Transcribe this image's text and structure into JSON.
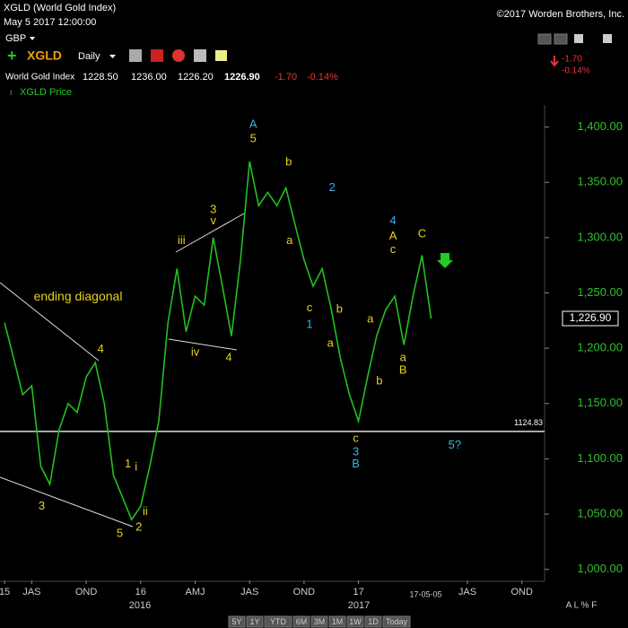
{
  "ui": {
    "title": "XGLD (World Gold Index)",
    "timestamp": "May 5 2017 12:00:00",
    "copyright": "©2017 Worden Brothers, Inc.",
    "currency": "GBP",
    "symbol": "XGLD",
    "interval": "Daily",
    "quote_name": "World Gold Index",
    "open": "1228.50",
    "high": "1236.00",
    "low": "1226.20",
    "last": "1226.90",
    "change": "-1.70",
    "change_pct": "-0.14%",
    "year_2016": "2016",
    "year_2017": "2017",
    "axis_options": "A L % F",
    "ranges": [
      "5Y",
      "1Y",
      "YTD",
      "6M",
      "3M",
      "1M",
      "1W",
      "1D",
      "Today"
    ]
  },
  "chart_data": {
    "type": "line",
    "categories": [
      "15",
      null,
      null,
      "JAS",
      null,
      null,
      null,
      null,
      null,
      "OND",
      null,
      null,
      null,
      null,
      null,
      "16",
      null,
      null,
      null,
      null,
      null,
      "AMJ",
      null,
      null,
      null,
      null,
      null,
      "JAS",
      null,
      null,
      null,
      null,
      null,
      "OND",
      null,
      null,
      null,
      null,
      null,
      "17",
      null,
      null,
      null,
      null,
      null,
      null,
      null,
      null,
      null,
      null,
      null,
      "JAS",
      null,
      null,
      null,
      null,
      null,
      "OND",
      null,
      null
    ],
    "series": [
      {
        "name": "XGLD Price",
        "color": "#22c01e",
        "values": [
          1223,
          1191,
          1158,
          1166,
          1093,
          1077,
          1126,
          1150,
          1142,
          1174,
          1187,
          1150,
          1085,
          1065,
          1045,
          1057,
          1093,
          1134,
          1223,
          1272,
          1215,
          1247,
          1239,
          1300,
          1256,
          1211,
          1280,
          1369,
          1329,
          1341,
          1329,
          1345,
          1312,
          1280,
          1256,
          1272,
          1235,
          1191,
          1158,
          1134,
          1174,
          1211,
          1235,
          1247,
          1203,
          1247,
          1284,
          1226.9,
          null,
          null,
          null,
          null,
          null,
          null,
          null,
          null,
          null,
          null,
          null,
          null
        ]
      }
    ],
    "last_value_label": "1,226.90",
    "date_marker": "17-05-05",
    "hline": 1124.83,
    "ylim": [
      990,
      1420
    ],
    "yticks": [
      {
        "value": 1000,
        "label": "1,000.00"
      },
      {
        "value": 1050,
        "label": "1,050.00"
      },
      {
        "value": 1100,
        "label": "1,100.00"
      },
      {
        "value": 1150,
        "label": "1,150.00"
      },
      {
        "value": 1200,
        "label": "1,200.00"
      },
      {
        "value": 1250,
        "label": "1,250.00"
      },
      {
        "value": 1300,
        "label": "1,300.00"
      },
      {
        "value": 1350,
        "label": "1,350.00"
      },
      {
        "value": 1400,
        "label": "1,400.00"
      }
    ],
    "annotations": [
      {
        "text": "A",
        "x": 27.4,
        "y": 1402,
        "color": "#38b4e6"
      },
      {
        "text": "5",
        "x": 27.4,
        "y": 1389,
        "color": "#e6d21e"
      },
      {
        "text": "b",
        "x": 31.3,
        "y": 1368,
        "color": "#e6d21e"
      },
      {
        "text": "a",
        "x": 31.4,
        "y": 1297,
        "color": "#e6d21e"
      },
      {
        "text": "2",
        "x": 36.1,
        "y": 1345,
        "color": "#38b4e6"
      },
      {
        "text": "c",
        "x": 33.6,
        "y": 1236,
        "color": "#e6d21e"
      },
      {
        "text": "1",
        "x": 33.6,
        "y": 1221,
        "color": "#38b4e6"
      },
      {
        "text": "b",
        "x": 36.9,
        "y": 1235,
        "color": "#e6d21e"
      },
      {
        "text": "a",
        "x": 35.9,
        "y": 1204,
        "color": "#e6d21e"
      },
      {
        "text": "c",
        "x": 38.7,
        "y": 1118,
        "color": "#e6d21e"
      },
      {
        "text": "3",
        "x": 38.7,
        "y": 1106,
        "color": "#38b4e6"
      },
      {
        "text": "B",
        "x": 38.7,
        "y": 1095,
        "color": "#38b4e6"
      },
      {
        "text": "a",
        "x": 40.3,
        "y": 1226,
        "color": "#e6d21e"
      },
      {
        "text": "b",
        "x": 41.3,
        "y": 1170,
        "color": "#e6d21e"
      },
      {
        "text": "4",
        "x": 42.8,
        "y": 1315,
        "color": "#38b4e6"
      },
      {
        "text": "A",
        "x": 42.8,
        "y": 1301,
        "color": "#e6d21e"
      },
      {
        "text": "c",
        "x": 42.8,
        "y": 1289,
        "color": "#e6d21e"
      },
      {
        "text": "a",
        "x": 43.9,
        "y": 1191,
        "color": "#e6d21e"
      },
      {
        "text": "B",
        "x": 43.9,
        "y": 1180,
        "color": "#e6d21e"
      },
      {
        "text": "C",
        "x": 46.0,
        "y": 1303,
        "color": "#e6d21e"
      },
      {
        "text": "5?",
        "x": 49.6,
        "y": 1112,
        "color": "#38b4e6"
      },
      {
        "text": "3",
        "x": 23,
        "y": 1325,
        "color": "#e6d21e"
      },
      {
        "text": "v",
        "x": 23,
        "y": 1315,
        "color": "#e6d21e"
      },
      {
        "text": "iii",
        "x": 19.5,
        "y": 1297,
        "color": "#e6d21e"
      },
      {
        "text": "iv",
        "x": 21,
        "y": 1196,
        "color": "#e6d21e"
      },
      {
        "text": "4",
        "x": 24.7,
        "y": 1191,
        "color": "#e6d21e"
      },
      {
        "text": "4",
        "x": 10.6,
        "y": 1199,
        "color": "#e6d21e"
      },
      {
        "text": "3",
        "x": 4.1,
        "y": 1057,
        "color": "#e6d21e"
      },
      {
        "text": "5",
        "x": 12.7,
        "y": 1032,
        "color": "#e6d21e"
      },
      {
        "text": "2",
        "x": 14.8,
        "y": 1038,
        "color": "#e6d21e"
      },
      {
        "text": "1",
        "x": 13.6,
        "y": 1095,
        "color": "#e6d21e"
      },
      {
        "text": "i",
        "x": 14.5,
        "y": 1092,
        "color": "#e6d21e"
      },
      {
        "text": "ii",
        "x": 15.5,
        "y": 1052,
        "color": "#e6d21e"
      },
      {
        "text": "ending diagonal",
        "x": 8.1,
        "y": 1246,
        "color": "#e6d21e"
      }
    ]
  }
}
